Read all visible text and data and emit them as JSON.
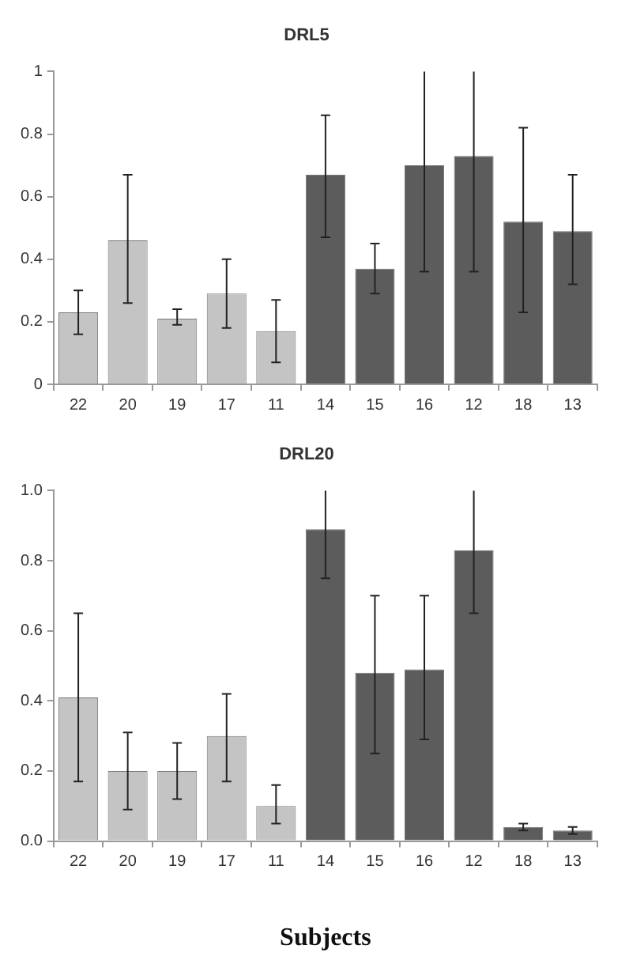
{
  "chart_data": [
    {
      "type": "bar",
      "title": "DRL5",
      "categories": [
        "22",
        "20",
        "19",
        "17",
        "11",
        "14",
        "15",
        "16",
        "12",
        "18",
        "13"
      ],
      "values": [
        0.23,
        0.46,
        0.21,
        0.29,
        0.17,
        0.67,
        0.37,
        0.7,
        0.73,
        0.52,
        0.49
      ],
      "colors": [
        "#c4c4c4",
        "#c4c4c4",
        "#c4c4c4",
        "#c4c4c4",
        "#c4c4c4",
        "#5c5c5c",
        "#5c5c5c",
        "#5c5c5c",
        "#5c5c5c",
        "#5c5c5c",
        "#5c5c5c"
      ],
      "errors": [
        [
          0.16,
          0.3
        ],
        [
          0.26,
          0.67
        ],
        [
          0.19,
          0.24
        ],
        [
          0.18,
          0.4
        ],
        [
          0.07,
          0.27
        ],
        [
          0.47,
          0.86
        ],
        [
          0.29,
          0.45
        ],
        [
          0.36,
          1
        ],
        [
          0.36,
          1
        ],
        [
          0.23,
          0.82
        ],
        [
          0.32,
          0.67
        ]
      ],
      "ylim": [
        0,
        1
      ],
      "yticks": [
        0,
        0.2,
        0.4,
        0.6,
        0.8,
        1
      ]
    },
    {
      "type": "bar",
      "title": "DRL20",
      "xlabel": "Subjects",
      "categories": [
        "22",
        "20",
        "19",
        "17",
        "11",
        "14",
        "15",
        "16",
        "12",
        "18",
        "13"
      ],
      "values": [
        0.41,
        0.2,
        0.2,
        0.3,
        0.1,
        0.89,
        0.48,
        0.49,
        0.83,
        0.04,
        0.03
      ],
      "colors": [
        "#c4c4c4",
        "#c4c4c4",
        "#c4c4c4",
        "#c4c4c4",
        "#c4c4c4",
        "#5c5c5c",
        "#5c5c5c",
        "#5c5c5c",
        "#5c5c5c",
        "#5c5c5c",
        "#5c5c5c"
      ],
      "errors": [
        [
          0.17,
          0.65
        ],
        [
          0.09,
          0.31
        ],
        [
          0.12,
          0.28
        ],
        [
          0.17,
          0.42
        ],
        [
          0.05,
          0.16
        ],
        [
          0.75,
          1.0
        ],
        [
          0.25,
          0.7
        ],
        [
          0.29,
          0.7
        ],
        [
          0.65,
          1.0
        ],
        [
          0.03,
          0.05
        ],
        [
          0.02,
          0.04
        ]
      ],
      "ylim": [
        0,
        1
      ],
      "yticks": [
        {
          "value": 0,
          "label": "0.0"
        },
        0.2,
        0.4,
        0.6,
        0.8,
        {
          "value": 1,
          "label": "1.0"
        }
      ]
    }
  ]
}
